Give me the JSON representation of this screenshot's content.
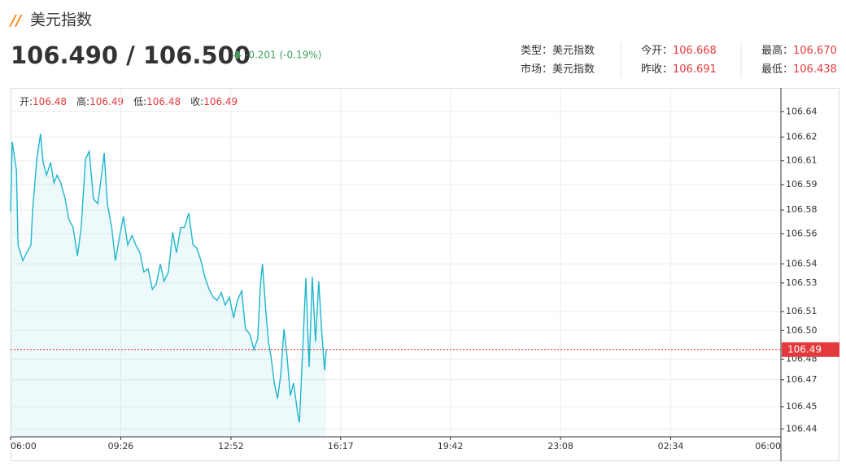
{
  "header": {
    "title": "美元指数",
    "bid_ask": "106.490 / 106.500",
    "change": "-0.201 (-0.19%)"
  },
  "info": {
    "rows": [
      [
        {
          "label": "类型：",
          "value": "美元指数"
        },
        {
          "label": "今开：",
          "value": "106.668"
        },
        {
          "label": "最高：",
          "value": "106.670"
        }
      ],
      [
        {
          "label": "市场：",
          "value": "美元指数"
        },
        {
          "label": "昨收：",
          "value": "106.691"
        },
        {
          "label": "最低：",
          "value": "106.438"
        }
      ]
    ]
  },
  "chart_data": {
    "type": "line",
    "ohlc": [
      {
        "label": "开:",
        "value": "106.48"
      },
      {
        "label": "高:",
        "value": "106.49"
      },
      {
        "label": "低:",
        "value": "106.48"
      },
      {
        "label": "收:",
        "value": "106.49"
      }
    ],
    "x": [
      0,
      3,
      11,
      14,
      23,
      30,
      38,
      41,
      49,
      56,
      61,
      67,
      75,
      81,
      87,
      94,
      102,
      109,
      117,
      125,
      132,
      140,
      147,
      155,
      163,
      170,
      175,
      181,
      189,
      196,
      204,
      211,
      219,
      227,
      234,
      242,
      249,
      257,
      265,
      272,
      280,
      287,
      295,
      303,
      310,
      318,
      325,
      333,
      341,
      348,
      356,
      363,
      371,
      379,
      386,
      394,
      401,
      409,
      417,
      424,
      432,
      439,
      447,
      455,
      462,
      467,
      471,
      477,
      482,
      487,
      493,
      499,
      505,
      511,
      517,
      523,
      529,
      537,
      540,
      546,
      552,
      558,
      564,
      570,
      576,
      582,
      587,
      590
    ],
    "series": [
      {
        "name": "美元指数",
        "color": "#1eb6cc",
        "values": [
          106.577,
          106.621,
          106.603,
          106.556,
          106.546,
          106.551,
          106.556,
          106.577,
          106.61,
          106.626,
          106.608,
          106.6,
          106.608,
          106.595,
          106.6,
          106.595,
          106.585,
          106.572,
          106.567,
          106.549,
          106.567,
          106.61,
          106.615,
          106.585,
          106.582,
          106.6,
          106.614,
          106.582,
          106.567,
          106.546,
          106.562,
          106.574,
          106.556,
          106.562,
          106.556,
          106.551,
          106.539,
          106.541,
          106.528,
          106.531,
          106.544,
          106.533,
          106.539,
          106.564,
          106.551,
          106.567,
          106.567,
          106.576,
          106.556,
          106.554,
          106.546,
          106.536,
          106.528,
          106.523,
          106.521,
          106.526,
          106.518,
          106.523,
          106.51,
          106.521,
          106.527,
          106.503,
          106.5,
          106.49,
          106.497,
          106.531,
          106.544,
          106.515,
          106.495,
          106.485,
          106.469,
          106.459,
          106.474,
          106.503,
          106.485,
          106.461,
          106.469,
          106.449,
          106.444,
          106.49,
          106.535,
          106.479,
          106.536,
          106.495,
          106.533,
          106.5,
          106.477,
          106.49
        ]
      }
    ],
    "price_line": {
      "value": 106.49,
      "label": "106.49",
      "color": "#e4393c"
    },
    "xlim": [
      0,
      1440
    ],
    "xticks": [
      {
        "value": 0,
        "label": "06:00"
      },
      {
        "value": 206,
        "label": "09:26"
      },
      {
        "value": 412,
        "label": "12:52"
      },
      {
        "value": 617,
        "label": "16:17"
      },
      {
        "value": 822,
        "label": "19:42"
      },
      {
        "value": 1028,
        "label": "23:08"
      },
      {
        "value": 1234,
        "label": "02:34"
      },
      {
        "value": 1440,
        "label": "06:00"
      }
    ],
    "ylim": [
      106.435,
      106.655
    ],
    "yticks": [
      106.44,
      {
        "value": 106.454,
        "label": "106.45"
      },
      {
        "value": 106.471,
        "label": "106.47"
      },
      {
        "value": 106.484,
        "label": "106.48"
      },
      {
        "value": 106.502,
        "label": "106.50"
      },
      {
        "value": 106.514,
        "label": "106.51"
      },
      {
        "value": 106.532,
        "label": "106.53"
      },
      {
        "value": 106.544,
        "label": "106.54"
      },
      {
        "value": 106.563,
        "label": "106.56"
      },
      {
        "value": 106.578,
        "label": "106.58"
      },
      {
        "value": 106.594,
        "label": "106.59"
      },
      {
        "value": 106.609,
        "label": "106.61"
      },
      {
        "value": 106.624,
        "label": "106.62"
      },
      106.64
    ],
    "grid": true
  }
}
